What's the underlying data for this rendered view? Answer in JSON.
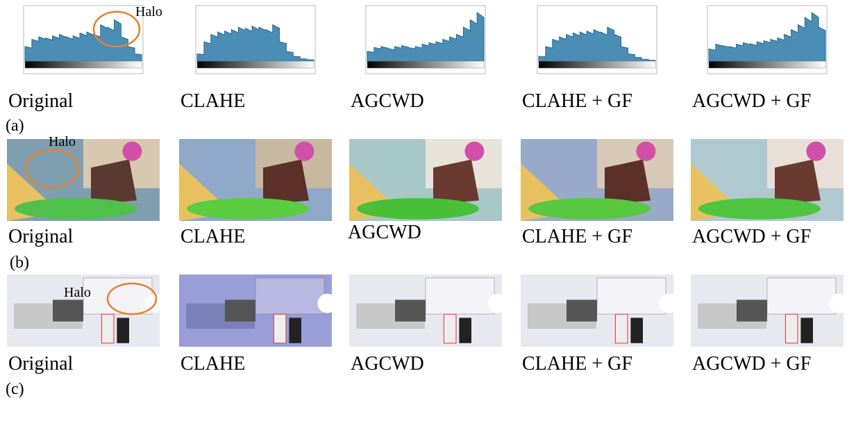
{
  "rows": [
    {
      "label": "(a)",
      "panels": [
        {
          "caption": "Original",
          "annotation": "Halo"
        },
        {
          "caption": "CLAHE"
        },
        {
          "caption": "AGCWD"
        },
        {
          "caption": "CLAHE + GF"
        },
        {
          "caption": "AGCWD + GF"
        }
      ]
    },
    {
      "label": "(b)",
      "panels": [
        {
          "caption": "Original",
          "annotation": "Halo"
        },
        {
          "caption": "CLAHE"
        },
        {
          "caption": "AGCWD"
        },
        {
          "caption": "CLAHE + GF"
        },
        {
          "caption": "AGCWD + GF"
        }
      ]
    },
    {
      "label": "(c)",
      "panels": [
        {
          "caption": "Original",
          "annotation": "Halo"
        },
        {
          "caption": "CLAHE"
        },
        {
          "caption": "AGCWD"
        },
        {
          "caption": "CLAHE + GF"
        },
        {
          "caption": "AGCWD + GF"
        }
      ]
    }
  ]
}
